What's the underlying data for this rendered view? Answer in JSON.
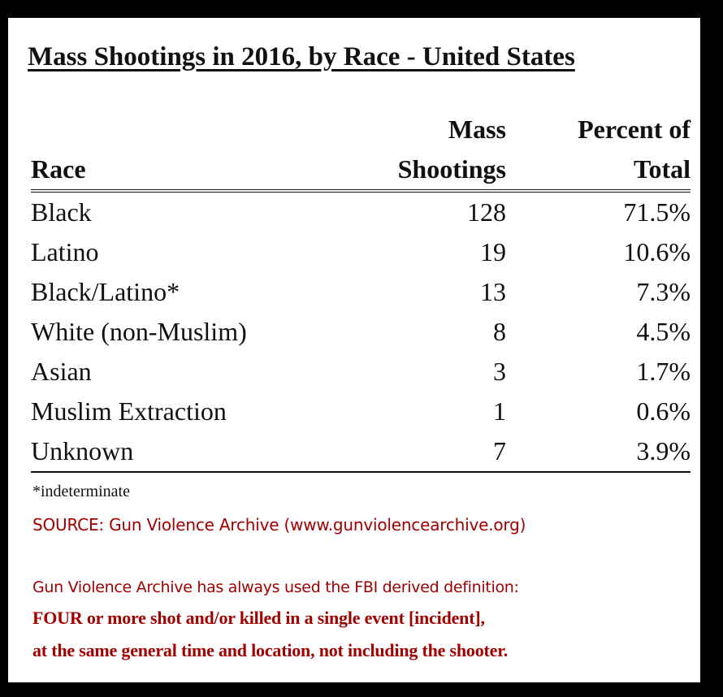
{
  "title": "Mass Shootings in 2016, by Race - United States",
  "columns": {
    "race": "Race",
    "count_line1": "Mass",
    "count_line2": "Shootings",
    "pct_line1": "Percent of",
    "pct_line2": "Total"
  },
  "rows": [
    {
      "race": "Black",
      "count": "128",
      "percent": "71.5%"
    },
    {
      "race": "Latino",
      "count": "19",
      "percent": "10.6%"
    },
    {
      "race": "Black/Latino*",
      "count": "13",
      "percent": "7.3%"
    },
    {
      "race": "White (non-Muslim)",
      "count": "8",
      "percent": "4.5%"
    },
    {
      "race": "Asian",
      "count": "3",
      "percent": "1.7%"
    },
    {
      "race": "Muslim Extraction",
      "count": "1",
      "percent": "0.6%"
    },
    {
      "race": "Unknown",
      "count": "7",
      "percent": "3.9%"
    }
  ],
  "footnote": "*indeterminate",
  "source": "SOURCE: Gun Violence Archive (www.gunviolencearchive.org)",
  "definition": {
    "line1": "Gun Violence Archive has always used the FBI derived definition:",
    "line2": "FOUR or more shot and/or killed in a single event [incident],",
    "line3": "at the same general time and location, not including the shooter."
  },
  "colors": {
    "background": "#000000",
    "card": "#ffffff",
    "text": "#111111",
    "accent_red": "#a00000"
  }
}
